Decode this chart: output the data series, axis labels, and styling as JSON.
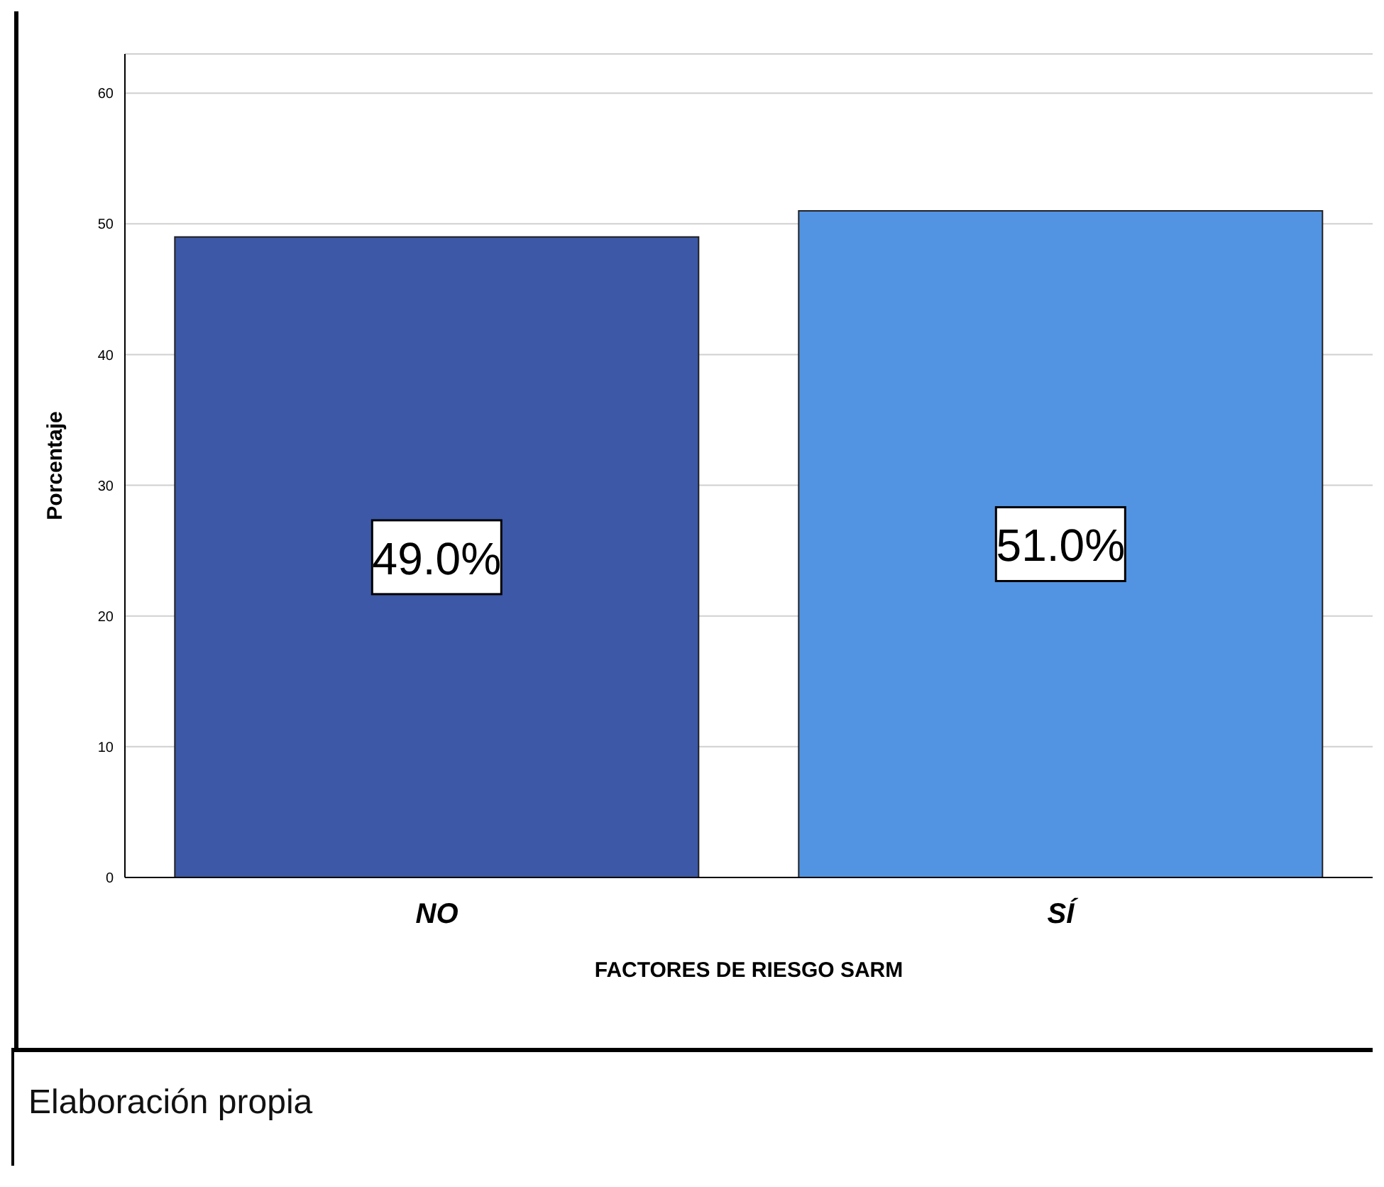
{
  "chart_data": {
    "type": "bar",
    "ylabel": "Porcentaje",
    "xlabel": "FACTORES DE RIESGO SARM",
    "categories": [
      "NO",
      "SÍ"
    ],
    "values": [
      49,
      51
    ],
    "colors": [
      "#3c58a6",
      "#5294e2"
    ],
    "value_labels": [
      "49.0%",
      "51.0%"
    ],
    "ylim": [
      0,
      63
    ],
    "yticks": [
      0,
      10,
      20,
      30,
      40,
      50,
      60
    ],
    "grid": "y",
    "annotations": [
      "Elaboración propia"
    ]
  }
}
